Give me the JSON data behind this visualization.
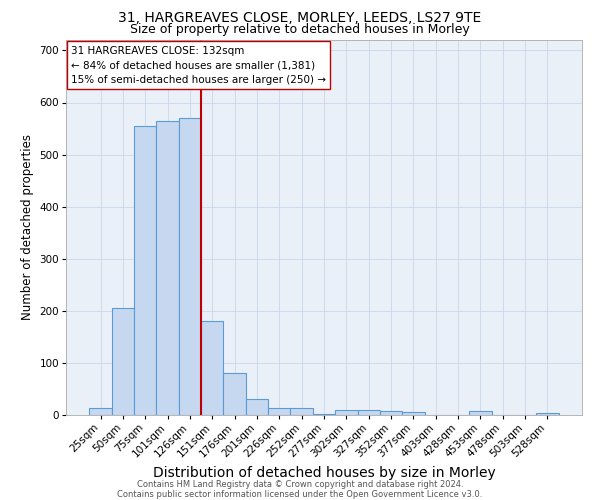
{
  "title": "31, HARGREAVES CLOSE, MORLEY, LEEDS, LS27 9TE",
  "subtitle": "Size of property relative to detached houses in Morley",
  "xlabel": "Distribution of detached houses by size in Morley",
  "ylabel": "Number of detached properties",
  "footer_line1": "Contains HM Land Registry data © Crown copyright and database right 2024.",
  "footer_line2": "Contains public sector information licensed under the Open Government Licence v3.0.",
  "categories": [
    "25sqm",
    "50sqm",
    "75sqm",
    "101sqm",
    "126sqm",
    "151sqm",
    "176sqm",
    "201sqm",
    "226sqm",
    "252sqm",
    "277sqm",
    "302sqm",
    "327sqm",
    "352sqm",
    "377sqm",
    "403sqm",
    "428sqm",
    "453sqm",
    "478sqm",
    "503sqm",
    "528sqm"
  ],
  "values": [
    13,
    205,
    555,
    565,
    570,
    180,
    80,
    30,
    14,
    13,
    2,
    10,
    10,
    8,
    5,
    0,
    0,
    7,
    0,
    0,
    3
  ],
  "bar_color": "#c5d8f0",
  "bar_edge_color": "#5b9bd5",
  "bar_edge_width": 0.8,
  "vline_x_index": 4,
  "vline_color": "#c00000",
  "vline_linewidth": 1.5,
  "annotation_line1": "31 HARGREAVES CLOSE: 132sqm",
  "annotation_line2": "← 84% of detached houses are smaller (1,381)",
  "annotation_line3": "15% of semi-detached houses are larger (250) →",
  "grid_color": "#c8d8ea",
  "bg_color": "#eaf0f8",
  "ylim": [
    0,
    720
  ],
  "yticks": [
    0,
    100,
    200,
    300,
    400,
    500,
    600,
    700
  ],
  "title_fontsize": 10,
  "subtitle_fontsize": 9,
  "xlabel_fontsize": 10,
  "ylabel_fontsize": 8.5,
  "tick_fontsize": 7.5,
  "annotation_fontsize": 7.5,
  "footer_fontsize": 6
}
